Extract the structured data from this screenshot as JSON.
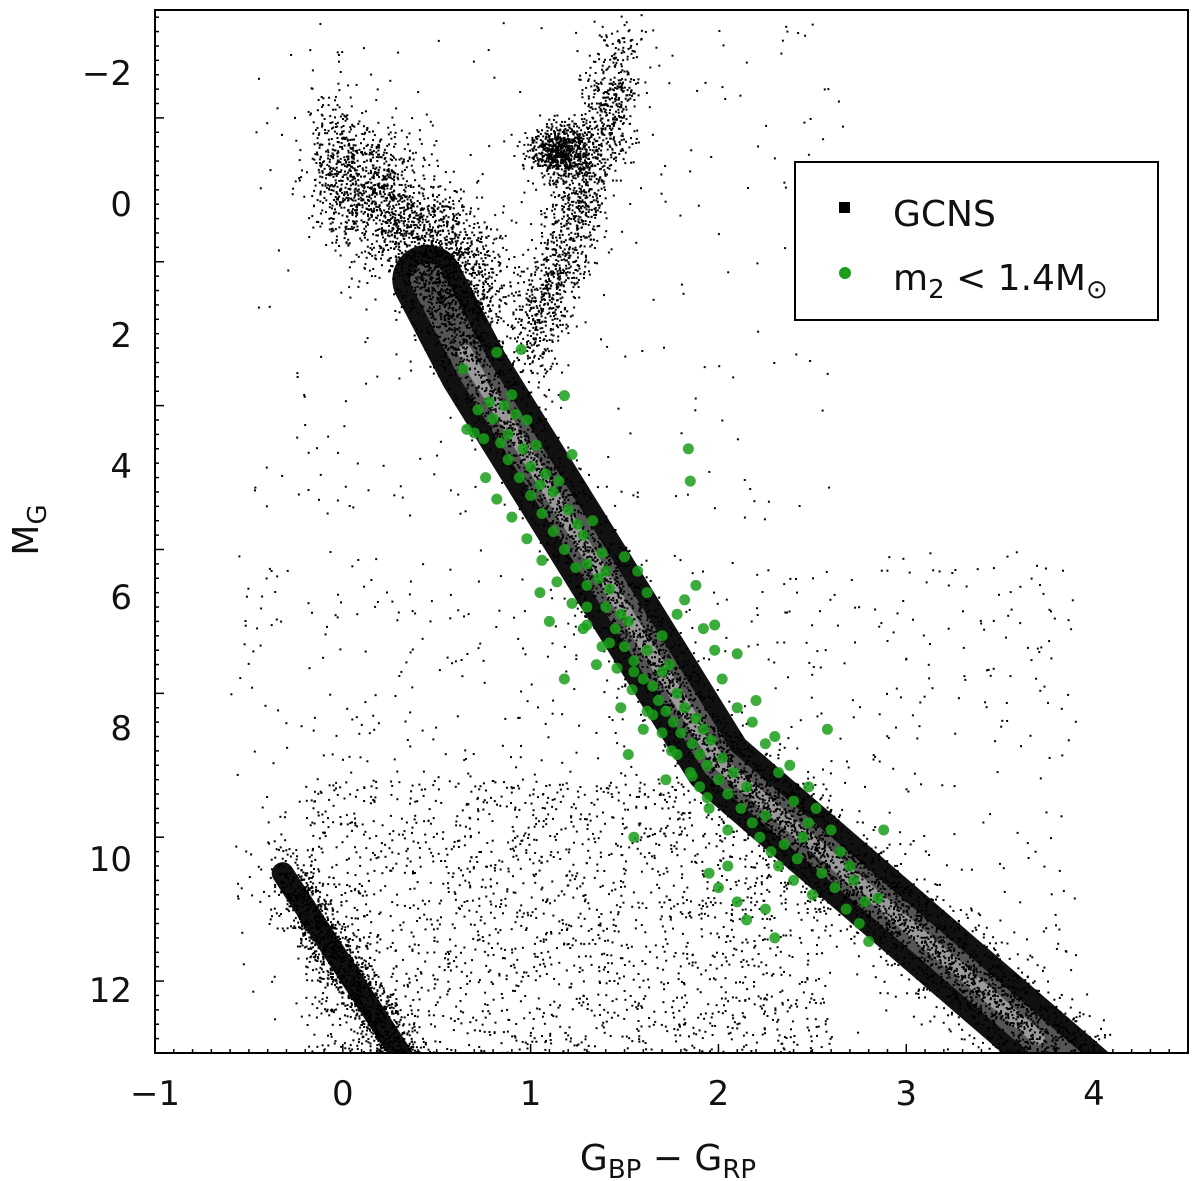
{
  "chart_data": {
    "type": "scatter",
    "xlabel": {
      "main": "G",
      "sub1": "BP",
      "minus": " − ",
      "main2": "G",
      "sub2": "RP"
    },
    "ylabel": {
      "main": "M",
      "sub": "G"
    },
    "xlim": [
      -1,
      4.5
    ],
    "ylim": [
      13,
      -1.5
    ],
    "y_inverted": true,
    "x_ticks": [
      -1,
      0,
      1,
      2,
      3,
      4
    ],
    "x_tick_labels": [
      "−1",
      "0",
      "1",
      "2",
      "3",
      "4"
    ],
    "y_ticks": [
      -2,
      0,
      2,
      4,
      6,
      8,
      10,
      12
    ],
    "y_tick_labels": [
      "−2",
      "0",
      "2",
      "4",
      "6",
      "8",
      "10",
      "12"
    ],
    "legend_position": "top-right",
    "series": [
      {
        "name": "GCNS",
        "color": "#000000",
        "marker": "square-pixel-density"
      },
      {
        "name": "m2 < 1.4M☉",
        "color": "#1a9e1a",
        "marker": "circle"
      }
    ],
    "legend": {
      "gcns": "GCNS",
      "m2_prefix": "m",
      "m2_sub": "2",
      "m2_rest": " < 1.4M",
      "m2_sub2": "⊙"
    },
    "green_points": [
      [
        0.64,
        3.49
      ],
      [
        0.66,
        4.33
      ],
      [
        0.7,
        4.38
      ],
      [
        0.72,
        4.06
      ],
      [
        0.75,
        4.46
      ],
      [
        0.78,
        3.95
      ],
      [
        0.8,
        4.18
      ],
      [
        0.82,
        3.26
      ],
      [
        0.84,
        4.52
      ],
      [
        0.86,
        4.0
      ],
      [
        0.88,
        4.4
      ],
      [
        0.9,
        3.85
      ],
      [
        0.92,
        4.12
      ],
      [
        0.95,
        3.22
      ],
      [
        0.96,
        4.6
      ],
      [
        0.98,
        4.2
      ],
      [
        1.0,
        4.85
      ],
      [
        1.03,
        4.55
      ],
      [
        1.05,
        5.1
      ],
      [
        1.08,
        4.95
      ],
      [
        1.12,
        5.2
      ],
      [
        1.15,
        5.05
      ],
      [
        1.18,
        3.86
      ],
      [
        1.2,
        5.45
      ],
      [
        1.22,
        4.68
      ],
      [
        1.25,
        5.65
      ],
      [
        1.28,
        5.8
      ],
      [
        1.3,
        6.2
      ],
      [
        1.33,
        5.6
      ],
      [
        1.36,
        6.4
      ],
      [
        1.38,
        6.05
      ],
      [
        1.4,
        6.8
      ],
      [
        1.42,
        6.55
      ],
      [
        1.45,
        7.1
      ],
      [
        1.48,
        6.9
      ],
      [
        1.5,
        7.35
      ],
      [
        1.52,
        7.0
      ],
      [
        1.55,
        7.55
      ],
      [
        1.57,
        6.3
      ],
      [
        1.6,
        7.8
      ],
      [
        1.62,
        7.4
      ],
      [
        1.65,
        7.9
      ],
      [
        1.68,
        8.1
      ],
      [
        1.7,
        7.7
      ],
      [
        1.72,
        8.25
      ],
      [
        1.74,
        7.6
      ],
      [
        1.76,
        8.4
      ],
      [
        1.78,
        8.0
      ],
      [
        1.8,
        8.55
      ],
      [
        1.82,
        8.2
      ],
      [
        1.84,
        4.6
      ],
      [
        1.85,
        5.05
      ],
      [
        1.86,
        8.7
      ],
      [
        1.88,
        8.35
      ],
      [
        1.9,
        8.85
      ],
      [
        1.92,
        8.5
      ],
      [
        1.94,
        9.0
      ],
      [
        1.96,
        8.65
      ],
      [
        1.98,
        7.05
      ],
      [
        2.0,
        9.2
      ],
      [
        2.02,
        8.9
      ],
      [
        2.05,
        9.4
      ],
      [
        2.08,
        9.1
      ],
      [
        2.1,
        7.45
      ],
      [
        2.12,
        9.6
      ],
      [
        2.15,
        9.3
      ],
      [
        2.18,
        9.8
      ],
      [
        2.2,
        8.1
      ],
      [
        2.22,
        10.0
      ],
      [
        2.25,
        9.7
      ],
      [
        2.28,
        10.2
      ],
      [
        2.3,
        8.6
      ],
      [
        2.32,
        10.4
      ],
      [
        2.35,
        10.1
      ],
      [
        2.38,
        9.0
      ],
      [
        2.4,
        10.6
      ],
      [
        2.42,
        10.3
      ],
      [
        2.45,
        10.0
      ],
      [
        2.48,
        9.3
      ],
      [
        2.5,
        10.8
      ],
      [
        2.52,
        9.6
      ],
      [
        2.55,
        10.5
      ],
      [
        2.58,
        8.5
      ],
      [
        2.6,
        9.9
      ],
      [
        2.62,
        10.7
      ],
      [
        2.65,
        10.2
      ],
      [
        2.68,
        11.0
      ],
      [
        2.7,
        10.4
      ],
      [
        2.72,
        10.6
      ],
      [
        2.75,
        11.2
      ],
      [
        2.78,
        10.9
      ],
      [
        2.8,
        11.45
      ],
      [
        2.85,
        10.85
      ],
      [
        2.88,
        9.9
      ],
      [
        2.3,
        11.4
      ],
      [
        2.15,
        11.15
      ],
      [
        1.55,
        10.0
      ],
      [
        1.18,
        7.8
      ],
      [
        1.05,
        6.6
      ],
      [
        1.1,
        7.0
      ],
      [
        1.28,
        7.1
      ],
      [
        1.35,
        7.6
      ],
      [
        1.48,
        8.2
      ],
      [
        1.6,
        8.5
      ],
      [
        1.52,
        8.85
      ],
      [
        1.72,
        9.2
      ],
      [
        1.9,
        9.3
      ],
      [
        2.05,
        10.4
      ],
      [
        1.95,
        10.5
      ],
      [
        2.0,
        10.7
      ],
      [
        2.1,
        10.9
      ],
      [
        2.25,
        11.0
      ],
      [
        1.4,
        6.3
      ],
      [
        1.5,
        6.1
      ],
      [
        1.62,
        6.6
      ],
      [
        1.7,
        7.2
      ],
      [
        1.78,
        6.9
      ],
      [
        1.82,
        6.7
      ],
      [
        1.88,
        6.5
      ],
      [
        1.92,
        7.1
      ],
      [
        1.98,
        7.4
      ],
      [
        2.02,
        7.8
      ],
      [
        2.1,
        8.2
      ],
      [
        2.18,
        8.4
      ],
      [
        2.25,
        8.7
      ],
      [
        2.32,
        9.1
      ],
      [
        2.4,
        9.5
      ],
      [
        2.48,
        9.8
      ],
      [
        1.3,
        6.8
      ],
      [
        1.42,
        7.3
      ],
      [
        1.55,
        7.7
      ],
      [
        1.65,
        8.3
      ],
      [
        1.75,
        8.8
      ],
      [
        1.85,
        9.1
      ],
      [
        1.95,
        9.6
      ],
      [
        2.05,
        9.9
      ],
      [
        0.88,
        4.75
      ],
      [
        0.94,
        5.0
      ],
      [
        1.0,
        5.25
      ],
      [
        1.06,
        5.5
      ],
      [
        1.12,
        5.75
      ],
      [
        1.18,
        6.0
      ],
      [
        1.24,
        6.25
      ],
      [
        1.3,
        6.5
      ],
      [
        0.76,
        5.0
      ],
      [
        0.82,
        5.3
      ],
      [
        0.9,
        5.55
      ],
      [
        0.98,
        5.85
      ],
      [
        1.06,
        6.15
      ],
      [
        1.14,
        6.45
      ],
      [
        1.22,
        6.75
      ],
      [
        1.3,
        7.05
      ],
      [
        1.38,
        7.35
      ],
      [
        1.46,
        7.65
      ],
      [
        1.54,
        7.95
      ],
      [
        1.62,
        8.25
      ],
      [
        1.7,
        8.55
      ],
      [
        1.78,
        8.85
      ],
      [
        1.86,
        9.15
      ],
      [
        1.94,
        9.45
      ]
    ]
  }
}
